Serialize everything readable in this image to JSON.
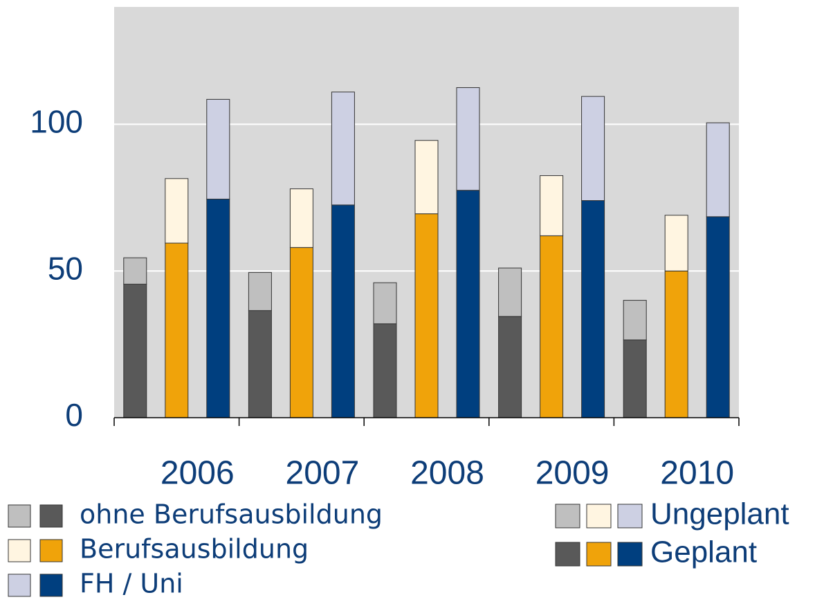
{
  "chart_data": {
    "type": "grouped-stacked-bar",
    "categories": [
      "2006",
      "2007",
      "2008",
      "2009",
      "2010"
    ],
    "stacks": [
      {
        "name": "Geplant"
      },
      {
        "name": "Ungeplant"
      }
    ],
    "series": [
      {
        "name": "ohne Berufsausbildung",
        "segments": [
          {
            "color": "#595959",
            "values": [
              45.5,
              36.5,
              32,
              34.5,
              26.5
            ]
          },
          {
            "color": "#bfbfbf",
            "values": [
              9,
              13,
              14,
              16.5,
              13.5
            ]
          }
        ]
      },
      {
        "name": "Berufsausbildung",
        "segments": [
          {
            "color": "#f0a30a",
            "values": [
              59.5,
              58,
              69.5,
              62,
              50
            ]
          },
          {
            "color": "#fff5e1",
            "values": [
              22,
              20,
              25,
              20.5,
              19
            ]
          }
        ]
      },
      {
        "name": "FH / Uni",
        "segments": [
          {
            "color": "#003f7f",
            "values": [
              74.5,
              72.5,
              77.5,
              74,
              68.5
            ]
          },
          {
            "color": "#cdd0e3",
            "values": [
              34,
              38.5,
              35,
              35.5,
              32
            ]
          }
        ]
      }
    ],
    "ylim": [
      0,
      140
    ],
    "yticks": [
      0,
      50,
      100
    ],
    "grid": true
  }
}
